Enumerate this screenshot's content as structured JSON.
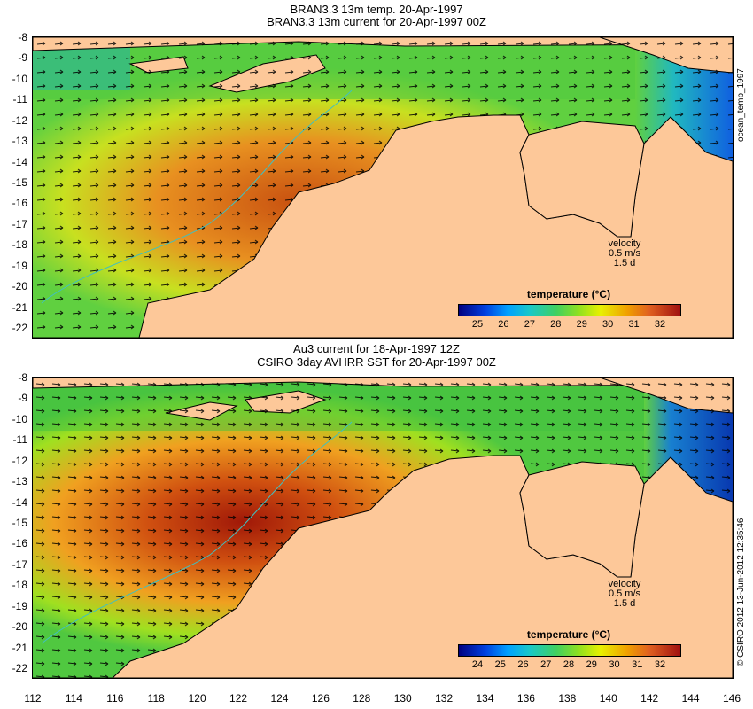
{
  "top_panel": {
    "title_line1": "BRAN3.3 13m temp. 20-Apr-1997",
    "title_line2": "BRAN3.3 13m current for 20-Apr-1997 00Z",
    "side_label": "ocean_temp_1997",
    "velocity_label": "velocity",
    "velocity_scale": "0.5 m/s",
    "velocity_time": "1.5 d",
    "colorbar_title": "temperature (°C)",
    "colorbar_ticks": [
      "25",
      "26",
      "27",
      "28",
      "29",
      "30",
      "31",
      "32"
    ]
  },
  "bottom_panel": {
    "title_line1": "Au3 current for 18-Apr-1997 12Z",
    "title_line2": "CSIRO 3day AVHRR SST for 20-Apr-1997 00Z",
    "side_label": "© CSIRO 2012  13-Jun-2012 12:35:46",
    "velocity_label": "velocity",
    "velocity_scale": "0.5 m/s",
    "velocity_time": "1.5 d",
    "colorbar_title": "temperature (°C)",
    "colorbar_ticks": [
      "24",
      "25",
      "26",
      "27",
      "28",
      "29",
      "30",
      "31",
      "32"
    ]
  },
  "axes": {
    "lat_ticks": [
      "-8",
      "-9",
      "-10",
      "-11",
      "-12",
      "-13",
      "-14",
      "-15",
      "-16",
      "-17",
      "-18",
      "-19",
      "-20",
      "-21",
      "-22"
    ],
    "lon_ticks": [
      "112",
      "114",
      "116",
      "118",
      "120",
      "122",
      "124",
      "126",
      "128",
      "130",
      "132",
      "134",
      "136",
      "138",
      "140",
      "142",
      "144",
      "146"
    ]
  },
  "colors": {
    "land": "#fdc899",
    "cold_water": "#1060e0",
    "warm_water": "#d05010",
    "mid_water": "#60d030"
  }
}
